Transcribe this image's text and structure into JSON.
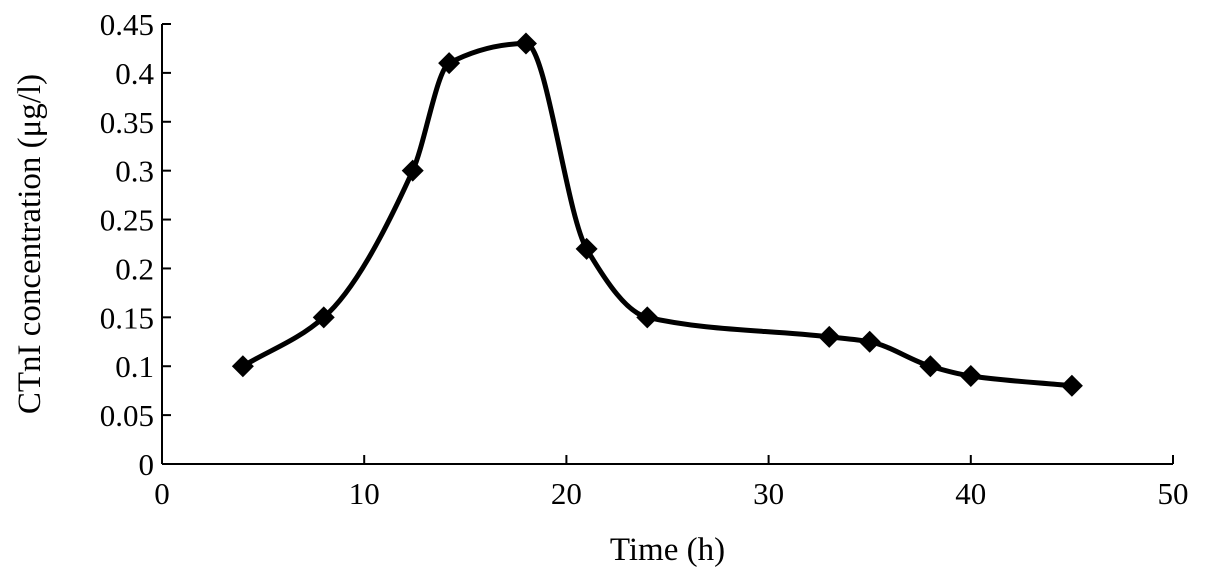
{
  "chart_data": {
    "type": "line",
    "title": "",
    "xlabel": "Time (h)",
    "ylabel": "CTnI concentration (μg/l)",
    "xlim": [
      0,
      50
    ],
    "ylim": [
      0,
      0.45
    ],
    "x_ticks": [
      0,
      10,
      20,
      30,
      40,
      50
    ],
    "x_tick_labels": [
      "0",
      "10",
      "20",
      "30",
      "40",
      "50"
    ],
    "y_ticks": [
      0,
      0.05,
      0.1,
      0.15,
      0.2,
      0.25,
      0.3,
      0.35,
      0.4,
      0.45
    ],
    "y_tick_labels": [
      "0",
      "0.05",
      "0.1",
      "0.15",
      "0.2",
      "0.25",
      "0.3",
      "0.35",
      "0.4",
      "0.45"
    ],
    "grid": false,
    "legend": "none",
    "smooth": true,
    "marker": "diamond",
    "line_color": "#000000",
    "series": [
      {
        "x": [
          4,
          8,
          12.4,
          14.2,
          18,
          21,
          24,
          33,
          35,
          38,
          40,
          45
        ],
        "values": [
          0.1,
          0.15,
          0.3,
          0.41,
          0.43,
          0.22,
          0.15,
          0.13,
          0.125,
          0.1,
          0.09,
          0.08
        ]
      }
    ]
  }
}
